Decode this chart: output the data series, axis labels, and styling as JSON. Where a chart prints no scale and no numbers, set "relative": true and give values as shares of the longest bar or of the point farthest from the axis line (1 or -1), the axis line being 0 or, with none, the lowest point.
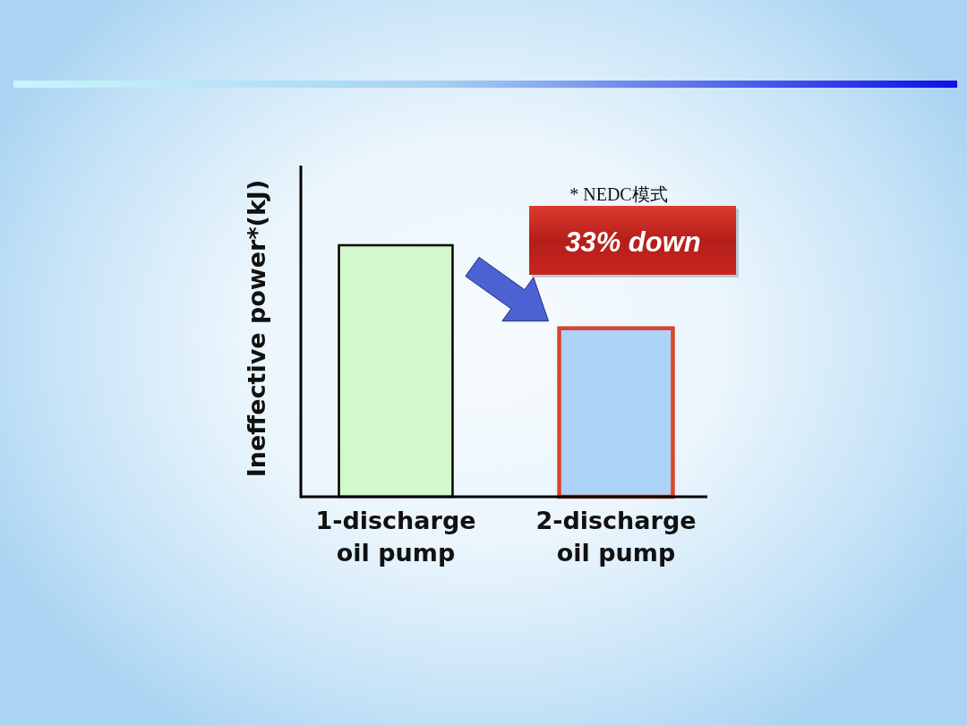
{
  "chart_data": {
    "type": "bar",
    "relative": true,
    "ylabel": "Ineffective power*(kJ)",
    "categories": [
      "1-discharge oil pump",
      "2-discharge oil pump"
    ],
    "values": [
      1,
      0.67
    ],
    "colors": [
      "#d2f8cb",
      "#acd2f8"
    ],
    "annotations": [
      "* NEDC模式",
      "33% down"
    ]
  }
}
